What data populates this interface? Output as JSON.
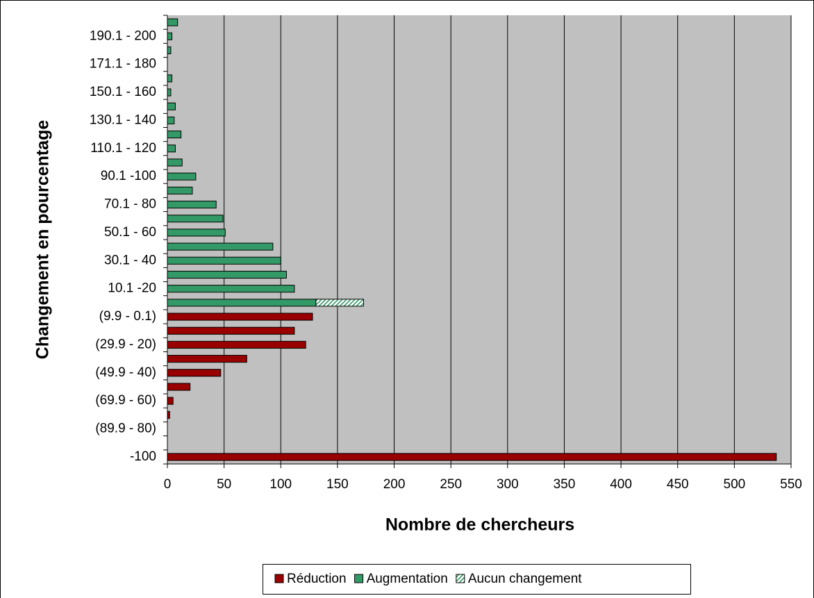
{
  "chart_data": {
    "type": "stacked-bar-horizontal",
    "x_label": "Nombre de chercheurs",
    "y_label": "Changement en pourcentage",
    "categories": [
      "-100",
      null,
      "(89.9 - 80)",
      null,
      "(69.9 - 60)",
      null,
      "(49.9 - 40)",
      null,
      "(29.9 - 20)",
      null,
      "(9.9 - 0.1)",
      null,
      "10.1 -20",
      null,
      "30.1 - 40",
      null,
      "50.1 - 60",
      null,
      "70.1 - 80",
      null,
      "90.1 -100",
      null,
      "110.1 - 120",
      null,
      "130.1 - 140",
      null,
      "150.1 - 160",
      null,
      "171.1 - 180",
      null,
      "190.1 - 200",
      null
    ],
    "series": [
      {
        "name": "Réduction",
        "color": "#990000",
        "values": [
          537,
          null,
          null,
          2,
          5,
          20,
          47,
          70,
          122,
          112,
          128,
          null,
          null,
          null,
          null,
          null,
          null,
          null,
          null,
          null,
          null,
          null,
          null,
          null,
          null,
          null,
          null,
          null,
          null,
          null,
          null,
          null
        ]
      },
      {
        "name": "Augmentation",
        "color": "#339966",
        "values": [
          null,
          null,
          null,
          null,
          null,
          null,
          null,
          null,
          null,
          null,
          null,
          131,
          112,
          105,
          100,
          93,
          51,
          49,
          43,
          22,
          25,
          13,
          7,
          12,
          6,
          7,
          3,
          4,
          null,
          3,
          4,
          9
        ]
      },
      {
        "name": "Aucun changement",
        "color": "#339966",
        "hatch": true,
        "values": [
          null,
          null,
          null,
          null,
          null,
          null,
          null,
          null,
          null,
          null,
          null,
          42,
          null,
          null,
          null,
          null,
          null,
          null,
          null,
          null,
          null,
          null,
          null,
          null,
          null,
          null,
          null,
          null,
          null,
          null,
          null,
          null
        ]
      }
    ],
    "xlim": [
      0,
      550
    ],
    "xticks": [
      0,
      50,
      100,
      150,
      200,
      250,
      300,
      350,
      400,
      450,
      500,
      550
    ],
    "grid": true,
    "legend": "bottom"
  }
}
